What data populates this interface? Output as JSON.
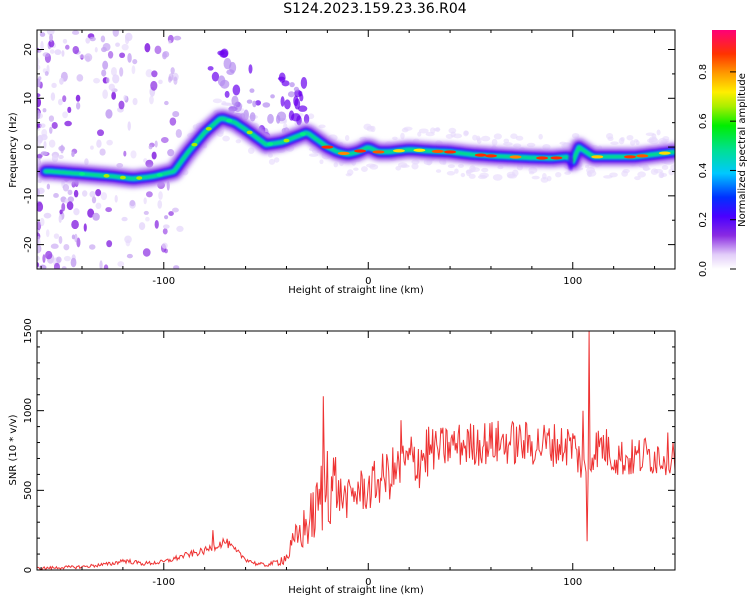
{
  "title": "S124.2023.159.23.36.R04",
  "colors": {
    "snr_line": "#ee3333",
    "axis": "#000000"
  },
  "chart_data": [
    {
      "type": "heatmap",
      "title": "S124.2023.159.23.36.R04",
      "xlabel": "Height of straight line (km)",
      "ylabel": "Frequency (Hz)",
      "xlim": [
        -162,
        150
      ],
      "ylim": [
        -25,
        24
      ],
      "x_ticks": [
        -100,
        0,
        100
      ],
      "y_ticks": [
        -20,
        -10,
        0,
        10,
        20
      ],
      "colorbar": {
        "label": "Normalized spectral amplitude",
        "ticks": [
          "0.0",
          "0.2",
          "0.4",
          "0.6",
          "0.8"
        ],
        "range": [
          0,
          0.97
        ],
        "colormap": "rainbow (white/lavender → violet → blue → cyan → green → yellow → orange → red → magenta)"
      },
      "ridge": {
        "x": [
          -155,
          -140,
          -125,
          -115,
          -105,
          -95,
          -88,
          -80,
          -72,
          -65,
          -58,
          -50,
          -42,
          -36,
          -30,
          -25,
          -20,
          -15,
          -10,
          -5,
          0,
          5,
          10,
          20,
          30,
          40,
          50,
          60,
          70,
          80,
          90,
          98,
          100,
          103,
          110,
          120,
          130,
          140,
          150
        ],
        "y": [
          -5,
          -5.5,
          -6,
          -6.5,
          -6,
          -5,
          -1,
          3,
          6,
          5,
          3,
          0.5,
          1,
          2,
          3,
          1.5,
          0,
          -1,
          -1.5,
          -1,
          0,
          -1,
          -1,
          -0.5,
          -0.8,
          -1,
          -1.5,
          -1.8,
          -2,
          -2.2,
          -2.3,
          -2,
          -3,
          0,
          -2,
          -2,
          -2,
          -1.5,
          -1
        ]
      }
    },
    {
      "type": "line",
      "xlabel": "Height of straight line (km)",
      "ylabel": "SNR (10 * v/v)",
      "xlim": [
        -162,
        150
      ],
      "ylim": [
        0,
        1500
      ],
      "x_ticks": [
        -100,
        0,
        100
      ],
      "y_ticks": [
        0,
        500,
        1000,
        1500
      ],
      "series": [
        {
          "x": [
            -162,
            -140,
            -125,
            -120,
            -110,
            -100,
            -90,
            -80,
            -75,
            -70,
            -65,
            -60,
            -55,
            -50,
            -45,
            -40,
            -35,
            -30,
            -25,
            -22,
            -20,
            -18,
            -15,
            -10,
            -5,
            0,
            5,
            10,
            15,
            20,
            25,
            30,
            35,
            40,
            50,
            60,
            70,
            80,
            90,
            95,
            100,
            103,
            105,
            107,
            110,
            115,
            120,
            125,
            130,
            135,
            140,
            145,
            150
          ],
          "y": [
            10,
            20,
            40,
            60,
            40,
            50,
            90,
            120,
            150,
            180,
            120,
            70,
            40,
            30,
            50,
            80,
            200,
            280,
            380,
            500,
            620,
            560,
            480,
            440,
            500,
            500,
            560,
            600,
            620,
            680,
            700,
            750,
            760,
            780,
            790,
            800,
            800,
            790,
            790,
            780,
            790,
            700,
            650,
            550,
            760,
            780,
            720,
            700,
            700,
            720,
            720,
            720,
            760
          ]
        }
      ],
      "peaks": {
        "x": [
          -76,
          -22,
          16,
          105,
          107,
          108
        ],
        "y": [
          250,
          1090,
          940,
          1000,
          180,
          1500
        ]
      }
    }
  ]
}
